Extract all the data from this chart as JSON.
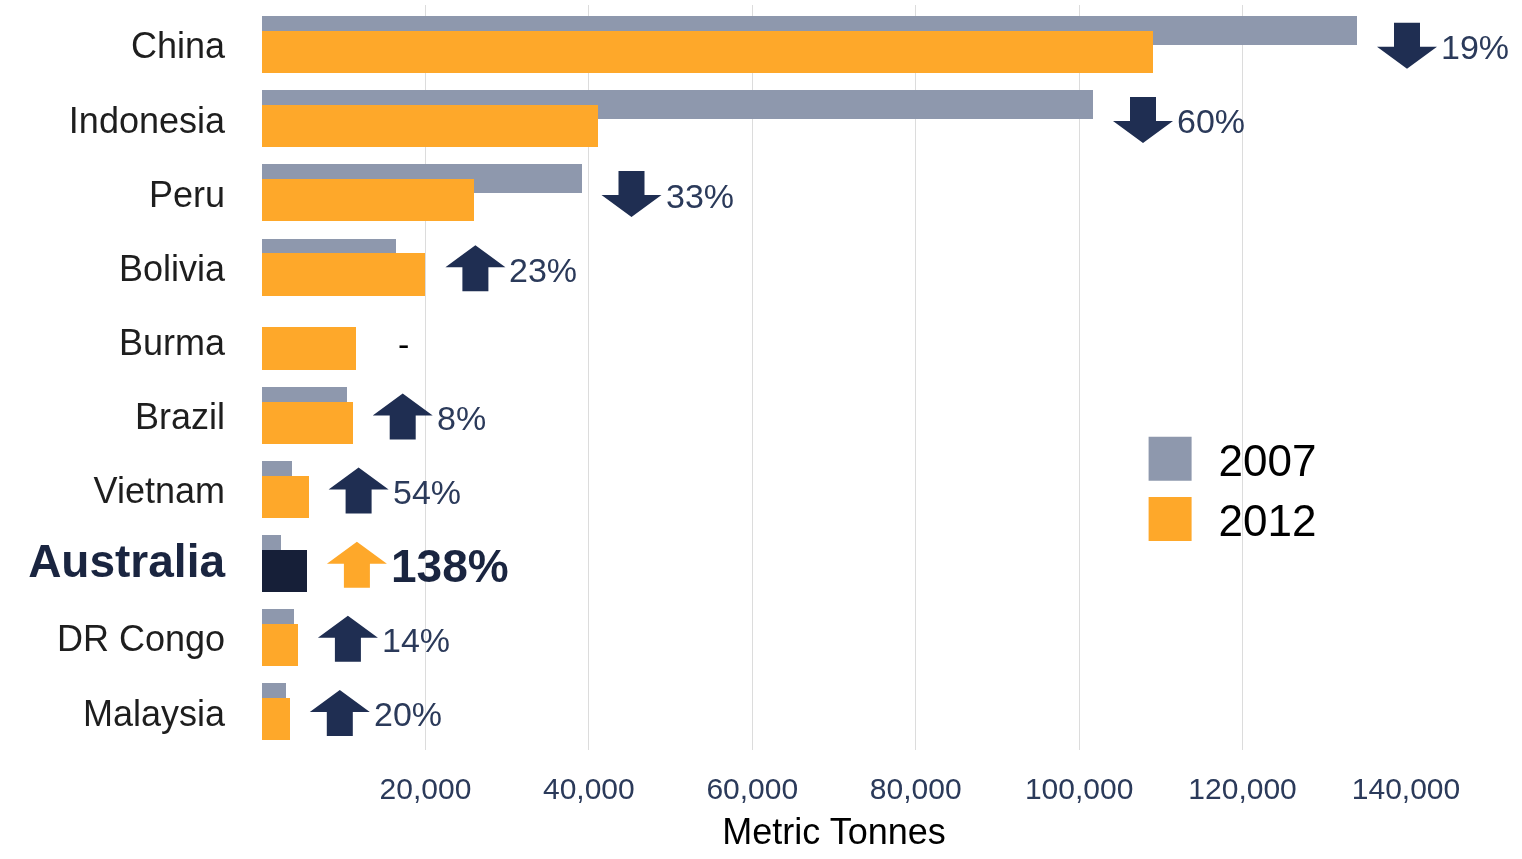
{
  "chart_data": {
    "type": "bar",
    "orientation": "horizontal",
    "xlabel": "Metric Tonnes",
    "categories": [
      "China",
      "Indonesia",
      "Peru",
      "Bolivia",
      "Burma",
      "Brazil",
      "Vietnam",
      "Australia",
      "DR Congo",
      "Malaysia"
    ],
    "series": [
      {
        "name": "2007",
        "color": "#8e98ad",
        "values": [
          134000,
          101700,
          39100,
          16400,
          null,
          10400,
          3700,
          2300,
          3900,
          2900
        ]
      },
      {
        "name": "2012",
        "color": "#fea82a",
        "values": [
          109000,
          41100,
          26000,
          20000,
          11500,
          11100,
          5700,
          5500,
          4400,
          3400
        ],
        "colors": [
          "#fea82a",
          "#fea82a",
          "#fea82a",
          "#fea82a",
          "#fea82a",
          "#fea82a",
          "#fea82a",
          "#161f38",
          "#fea82a",
          "#fea82a"
        ]
      }
    ],
    "xlim": [
      0,
      140000
    ],
    "xticks": [
      {
        "value": 20000,
        "label": "20,000"
      },
      {
        "value": 40000,
        "label": "40,000"
      },
      {
        "value": 60000,
        "label": "60,000"
      },
      {
        "value": 80000,
        "label": "80,000"
      },
      {
        "value": 100000,
        "label": "100,000"
      },
      {
        "value": 120000,
        "label": "120,000"
      },
      {
        "value": 140000,
        "label": "140,000"
      }
    ],
    "grid": "x",
    "legend": "right",
    "annotations": [
      "19%",
      "60%",
      "33%",
      "23%",
      "-",
      "8%",
      "54%",
      "138%",
      "14%",
      "20%"
    ]
  }
}
